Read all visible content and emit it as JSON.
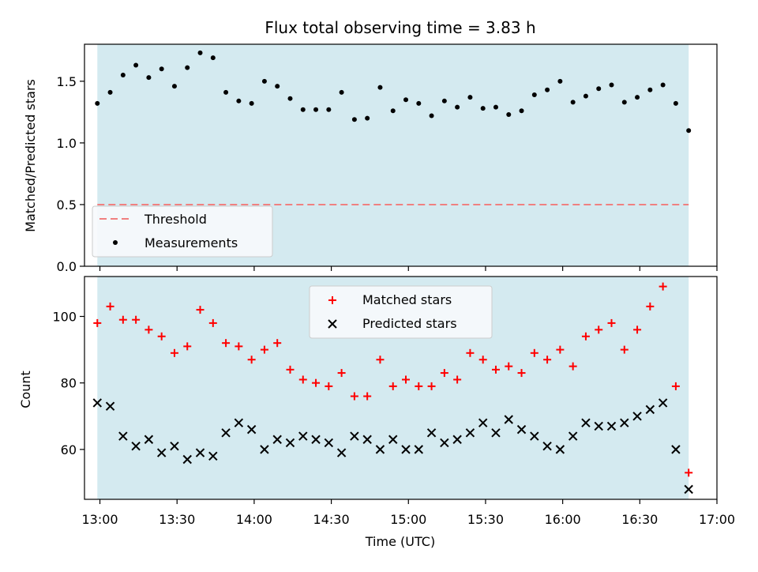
{
  "chart_data": {
    "type": "scatter",
    "title": "Flux total observing time = 3.83 h",
    "xlabel": "Time (UTC)",
    "x_tick_labels": [
      "13:00",
      "13:30",
      "14:00",
      "14:30",
      "15:00",
      "15:30",
      "16:00",
      "16:30",
      "17:00"
    ],
    "x_ticks": [
      "13:00",
      "13:30",
      "14:00",
      "14:30",
      "15:00",
      "15:30",
      "16:00",
      "16:30",
      "17:00"
    ],
    "xlim": [
      "12:54",
      "17:00"
    ],
    "times": [
      "12:59",
      "13:04",
      "13:09",
      "13:14",
      "13:19",
      "13:24",
      "13:29",
      "13:34",
      "13:39",
      "13:44",
      "13:49",
      "13:54",
      "13:59",
      "14:04",
      "14:09",
      "14:14",
      "14:19",
      "14:24",
      "14:29",
      "14:34",
      "14:39",
      "14:44",
      "14:49",
      "14:54",
      "14:59",
      "15:04",
      "15:09",
      "15:14",
      "15:19",
      "15:24",
      "15:29",
      "15:34",
      "15:39",
      "15:44",
      "15:49",
      "15:54",
      "15:59",
      "16:04",
      "16:09",
      "16:14",
      "16:19",
      "16:24",
      "16:29",
      "16:34",
      "16:39",
      "16:44",
      "16:49"
    ],
    "shaded_span": [
      "12:59",
      "16:49"
    ],
    "shade_color": "#d4eaf0",
    "panels": [
      {
        "ylabel": "Matched/Predicted stars",
        "ylim": [
          0,
          1.8
        ],
        "y_ticks": [
          0.0,
          0.5,
          1.0,
          1.5
        ],
        "y_tick_labels": [
          "0.0",
          "0.5",
          "1.0",
          "1.5"
        ],
        "threshold": 0.5,
        "legend_position": "lower-left",
        "series": [
          {
            "name": "Measurements",
            "marker": "dot",
            "color": "#000000",
            "values": [
              1.32,
              1.41,
              1.55,
              1.63,
              1.53,
              1.6,
              1.46,
              1.61,
              1.73,
              1.69,
              1.41,
              1.34,
              1.32,
              1.5,
              1.46,
              1.36,
              1.27,
              1.27,
              1.27,
              1.41,
              1.19,
              1.2,
              1.45,
              1.26,
              1.35,
              1.32,
              1.22,
              1.34,
              1.29,
              1.37,
              1.28,
              1.29,
              1.23,
              1.26,
              1.39,
              1.43,
              1.5,
              1.33,
              1.38,
              1.44,
              1.47,
              1.33,
              1.37,
              1.43,
              1.47,
              1.32,
              1.1
            ]
          }
        ],
        "lines": [
          {
            "name": "Threshold",
            "style": "dashed",
            "color": "#f08080",
            "value": 0.5
          }
        ]
      },
      {
        "ylabel": "Count",
        "ylim": [
          45,
          112
        ],
        "y_ticks": [
          60,
          80,
          100
        ],
        "y_tick_labels": [
          "60",
          "80",
          "100"
        ],
        "legend_position": "top-center",
        "series": [
          {
            "name": "Matched stars",
            "marker": "plus",
            "color": "#ff0000",
            "values": [
              98,
              103,
              99,
              99,
              96,
              94,
              89,
              91,
              102,
              98,
              92,
              91,
              87,
              90,
              92,
              84,
              81,
              80,
              79,
              83,
              76,
              76,
              87,
              79,
              81,
              79,
              79,
              83,
              81,
              89,
              87,
              84,
              85,
              83,
              89,
              87,
              90,
              85,
              94,
              96,
              98,
              90,
              96,
              103,
              109,
              79,
              53
            ]
          },
          {
            "name": "Predicted stars",
            "marker": "x",
            "color": "#000000",
            "values": [
              74,
              73,
              64,
              61,
              63,
              59,
              61,
              57,
              59,
              58,
              65,
              68,
              66,
              60,
              63,
              62,
              64,
              63,
              62,
              59,
              64,
              63,
              60,
              63,
              60,
              60,
              65,
              62,
              63,
              65,
              68,
              65,
              69,
              66,
              64,
              61,
              60,
              64,
              68,
              67,
              67,
              68,
              70,
              72,
              74,
              60,
              48
            ]
          }
        ]
      }
    ]
  }
}
